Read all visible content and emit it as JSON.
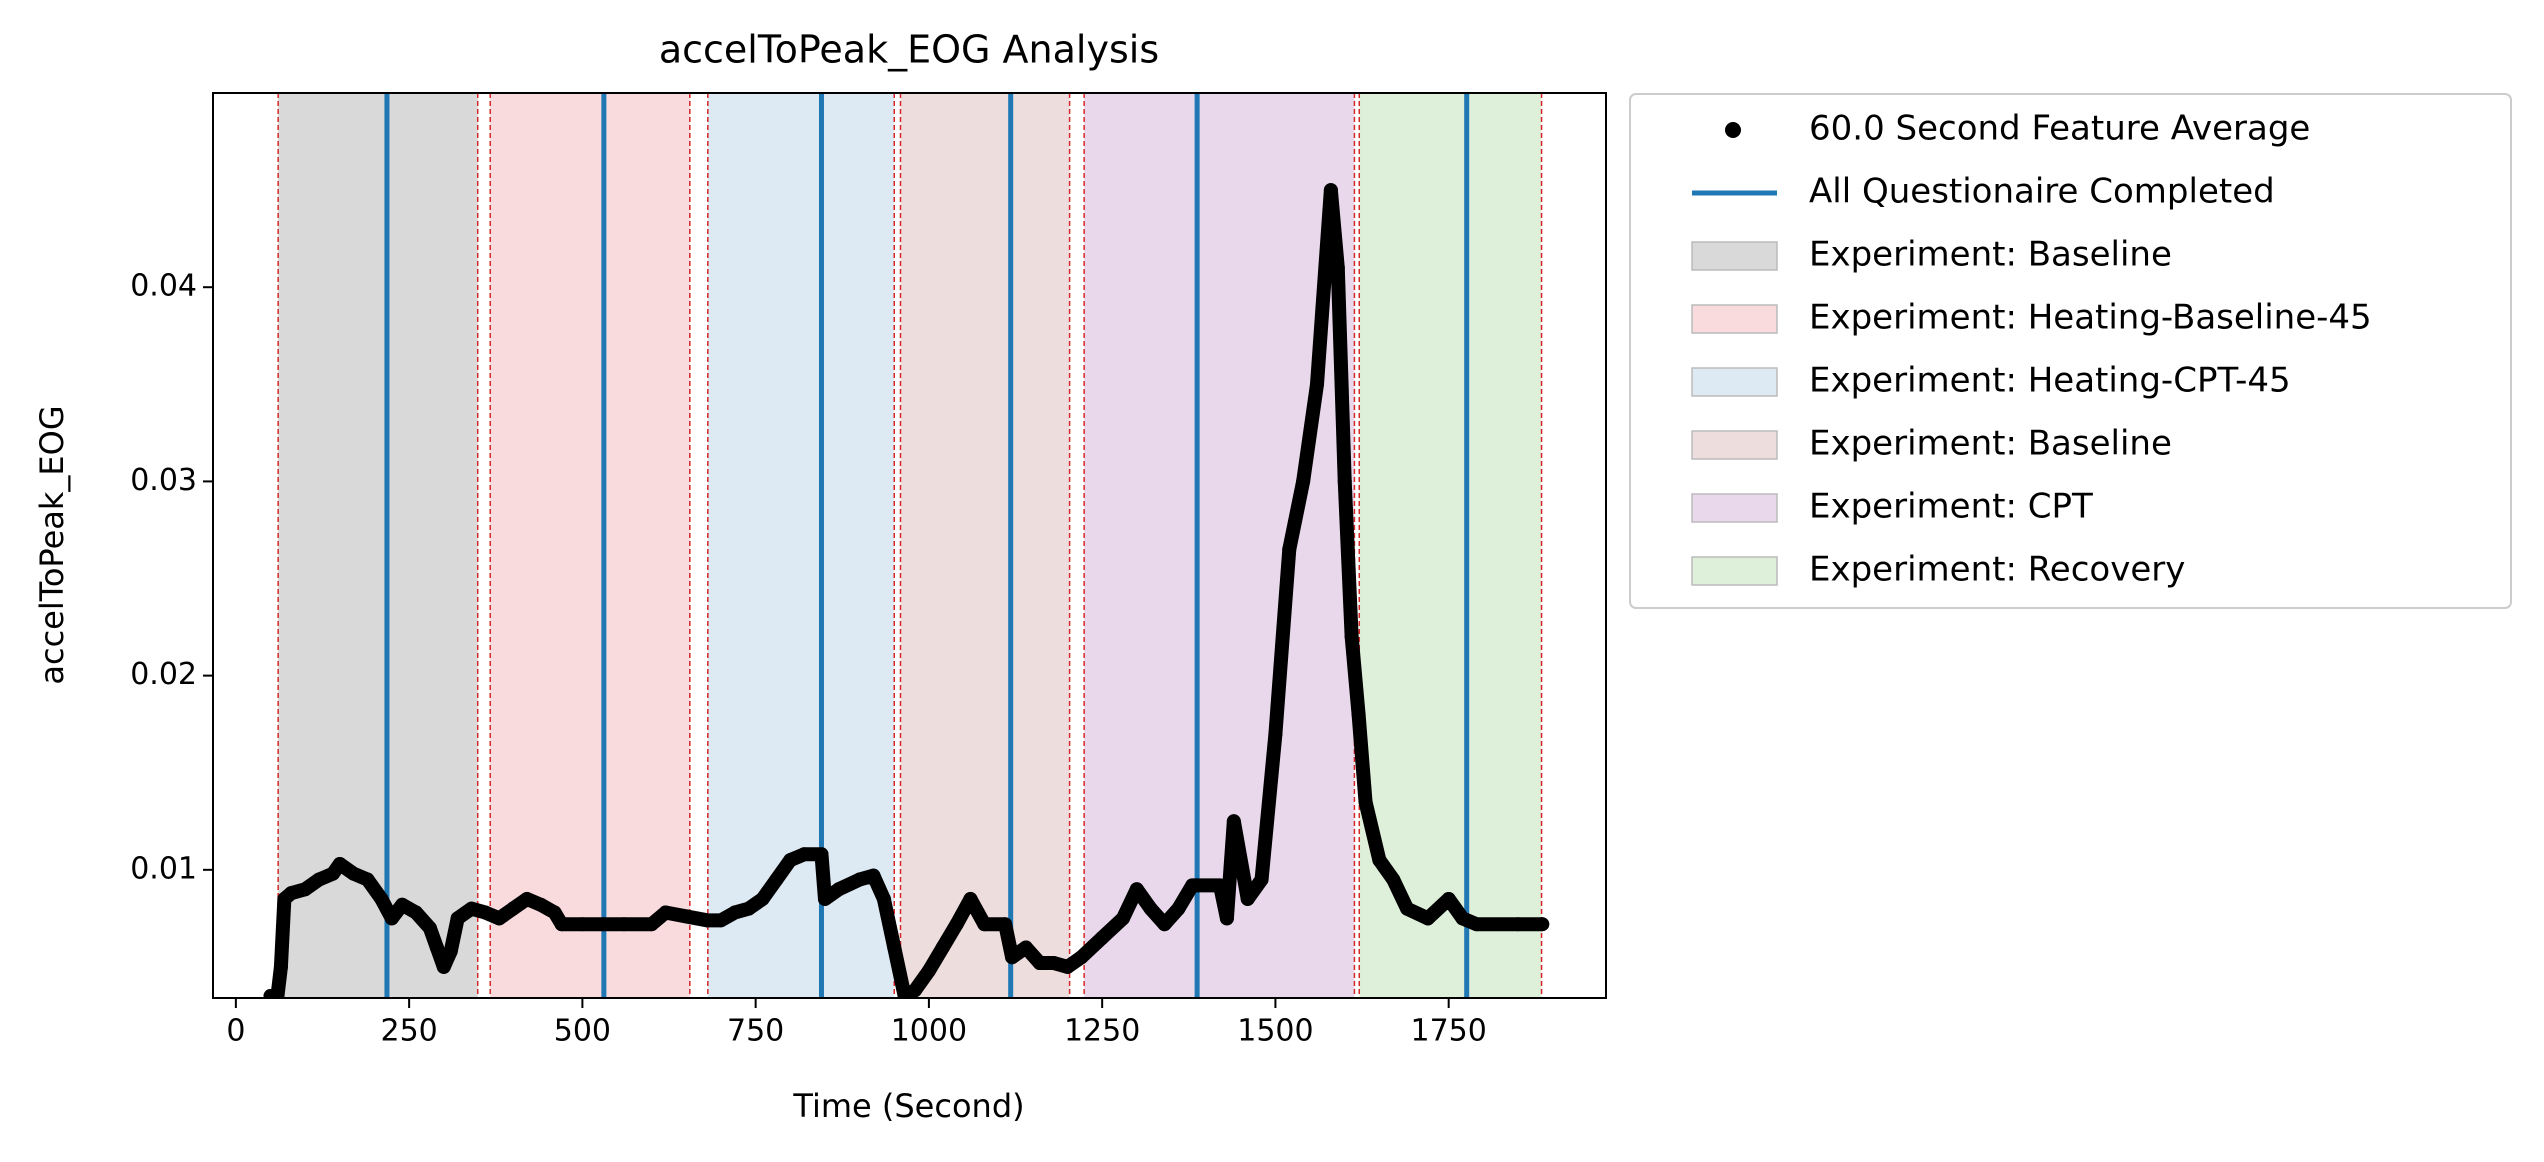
{
  "chart_data": {
    "type": "scatter",
    "title": "accelToPeak_EOG Analysis",
    "x_label": "Time (Second)",
    "y_label": "accelToPeak_EOG",
    "xlim": [
      -33,
      1977
    ],
    "ylim": [
      0.0034,
      0.05
    ],
    "xticks": [
      0,
      250,
      500,
      750,
      1000,
      1250,
      1500,
      1750
    ],
    "yticks": [
      0.01,
      0.02,
      0.03,
      0.04
    ],
    "legend": "outside upper right",
    "series": [
      {
        "name": "60.0 Second Feature Average",
        "color": "#000000",
        "x": [
          50,
          60,
          65,
          70,
          80,
          100,
          120,
          140,
          150,
          170,
          190,
          210,
          225,
          240,
          260,
          280,
          290,
          300,
          310,
          320,
          340,
          360,
          380,
          400,
          420,
          440,
          460,
          470,
          500,
          530,
          560,
          600,
          620,
          650,
          680,
          700,
          720,
          740,
          760,
          780,
          800,
          820,
          845,
          850,
          870,
          900,
          920,
          935,
          950,
          965,
          980,
          1000,
          1020,
          1040,
          1060,
          1080,
          1110,
          1120,
          1140,
          1160,
          1180,
          1200,
          1220,
          1250,
          1280,
          1300,
          1320,
          1340,
          1360,
          1380,
          1420,
          1430,
          1440,
          1460,
          1480,
          1500,
          1520,
          1540,
          1560,
          1580,
          1590,
          1600,
          1610,
          1620,
          1630,
          1650,
          1670,
          1690,
          1720,
          1750,
          1770,
          1790,
          1850,
          1885
        ],
        "values": [
          0.0035,
          0.0035,
          0.005,
          0.0085,
          0.0088,
          0.009,
          0.0095,
          0.0098,
          0.0103,
          0.0098,
          0.0095,
          0.0085,
          0.0075,
          0.0082,
          0.0078,
          0.007,
          0.006,
          0.005,
          0.0058,
          0.0075,
          0.008,
          0.0078,
          0.0075,
          0.008,
          0.0085,
          0.0082,
          0.0078,
          0.0072,
          0.0072,
          0.0072,
          0.0072,
          0.0072,
          0.0078,
          0.0076,
          0.0074,
          0.0074,
          0.0078,
          0.008,
          0.0085,
          0.0095,
          0.0105,
          0.0108,
          0.0108,
          0.0085,
          0.009,
          0.0095,
          0.0097,
          0.0085,
          0.006,
          0.0035,
          0.0038,
          0.0048,
          0.006,
          0.0072,
          0.0085,
          0.0072,
          0.0072,
          0.0055,
          0.006,
          0.0052,
          0.0052,
          0.005,
          0.0055,
          0.0065,
          0.0075,
          0.009,
          0.008,
          0.0072,
          0.008,
          0.0092,
          0.0092,
          0.0075,
          0.0125,
          0.0085,
          0.0095,
          0.017,
          0.0265,
          0.03,
          0.035,
          0.045,
          0.041,
          0.03,
          0.022,
          0.018,
          0.0135,
          0.0105,
          0.0095,
          0.008,
          0.0075,
          0.0085,
          0.0075,
          0.0072,
          0.0072,
          0.0072
        ]
      }
    ],
    "vlines": {
      "name": "All Questionaire Completed",
      "color": "#1f77b4",
      "x": [
        218,
        531,
        845,
        1118,
        1387,
        1776
      ]
    },
    "boundary_color": "#d62728",
    "spans": [
      {
        "name": "Experiment: Baseline",
        "color": "#d9d9d9",
        "start": 61,
        "end": 349
      },
      {
        "name": "Experiment: Heating-Baseline-45",
        "color": "#f9dbde",
        "start": 367,
        "end": 655
      },
      {
        "name": "Experiment: Heating-CPT-45",
        "color": "#dde9f3",
        "start": 681,
        "end": 950
      },
      {
        "name": "Experiment: Baseline",
        "color": "#eedddd",
        "start": 959,
        "end": 1203
      },
      {
        "name": "Experiment: CPT",
        "color": "#e9d8ec",
        "start": 1224,
        "end": 1614
      },
      {
        "name": "Experiment: Recovery",
        "color": "#dff0da",
        "start": 1621,
        "end": 1884
      }
    ]
  }
}
